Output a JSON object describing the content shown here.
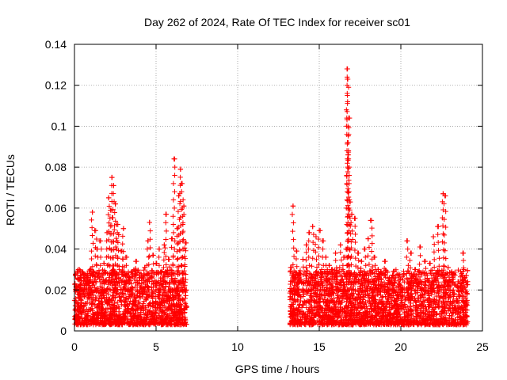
{
  "chart_data": {
    "type": "scatter",
    "title": "Day 262 of 2024, Rate Of TEC Index for receiver sc01",
    "xlabel": "GPS time / hours",
    "ylabel": "ROTI / TECUs",
    "xlim": [
      0,
      25
    ],
    "ylim": [
      0,
      0.14
    ],
    "xticks": [
      0,
      5,
      10,
      15,
      20,
      25
    ],
    "yticks": [
      0,
      0.02,
      0.04,
      0.06,
      0.08,
      0.1,
      0.12,
      0.14
    ],
    "xtick_labels": [
      "0",
      "5",
      "10",
      "15",
      "20",
      "25"
    ],
    "ytick_labels": [
      "0",
      "0.02",
      "0.04",
      "0.06",
      "0.08",
      "0.1",
      "0.12",
      "0.14"
    ],
    "grid": true,
    "marker": "+",
    "color": "#ff0000",
    "series": [
      {
        "name": "sc01",
        "points": [
          [
            0.1,
            0.022
          ],
          [
            0.2,
            0.018
          ],
          [
            0.3,
            0.025
          ],
          [
            0.4,
            0.015
          ],
          [
            0.6,
            0.021
          ],
          [
            0.8,
            0.027
          ],
          [
            1.0,
            0.03
          ],
          [
            1.1,
            0.058
          ],
          [
            1.3,
            0.049
          ],
          [
            1.4,
            0.04
          ],
          [
            1.6,
            0.044
          ],
          [
            1.8,
            0.033
          ],
          [
            2.0,
            0.048
          ],
          [
            2.1,
            0.065
          ],
          [
            2.2,
            0.059
          ],
          [
            2.3,
            0.075
          ],
          [
            2.4,
            0.071
          ],
          [
            2.5,
            0.062
          ],
          [
            2.6,
            0.052
          ],
          [
            2.7,
            0.047
          ],
          [
            2.9,
            0.039
          ],
          [
            3.0,
            0.05
          ],
          [
            3.2,
            0.036
          ],
          [
            3.5,
            0.029
          ],
          [
            3.8,
            0.034
          ],
          [
            4.0,
            0.026
          ],
          [
            4.3,
            0.031
          ],
          [
            4.5,
            0.044
          ],
          [
            4.6,
            0.053
          ],
          [
            4.8,
            0.037
          ],
          [
            5.0,
            0.033
          ],
          [
            5.2,
            0.04
          ],
          [
            5.5,
            0.042
          ],
          [
            5.6,
            0.057
          ],
          [
            5.8,
            0.035
          ],
          [
            6.0,
            0.045
          ],
          [
            6.1,
            0.084
          ],
          [
            6.3,
            0.05
          ],
          [
            6.4,
            0.066
          ],
          [
            6.5,
            0.079
          ],
          [
            6.6,
            0.072
          ],
          [
            6.7,
            0.061
          ],
          [
            6.8,
            0.043
          ],
          [
            13.3,
            0.031
          ],
          [
            13.4,
            0.061
          ],
          [
            13.6,
            0.039
          ],
          [
            13.8,
            0.028
          ],
          [
            14.0,
            0.035
          ],
          [
            14.2,
            0.042
          ],
          [
            14.4,
            0.048
          ],
          [
            14.6,
            0.051
          ],
          [
            14.8,
            0.046
          ],
          [
            15.0,
            0.049
          ],
          [
            15.2,
            0.044
          ],
          [
            15.4,
            0.036
          ],
          [
            15.6,
            0.032
          ],
          [
            15.8,
            0.03
          ],
          [
            16.0,
            0.038
          ],
          [
            16.3,
            0.042
          ],
          [
            16.5,
            0.036
          ],
          [
            16.7,
            0.128
          ],
          [
            16.75,
            0.123
          ],
          [
            16.8,
            0.104
          ],
          [
            16.78,
            0.086
          ],
          [
            16.9,
            0.063
          ],
          [
            17.0,
            0.057
          ],
          [
            17.2,
            0.055
          ],
          [
            17.4,
            0.038
          ],
          [
            17.6,
            0.034
          ],
          [
            17.8,
            0.04
          ],
          [
            18.0,
            0.045
          ],
          [
            18.2,
            0.054
          ],
          [
            18.4,
            0.036
          ],
          [
            18.6,
            0.03
          ],
          [
            18.8,
            0.028
          ],
          [
            19.0,
            0.034
          ],
          [
            19.3,
            0.026
          ],
          [
            19.5,
            0.022
          ],
          [
            19.8,
            0.018
          ],
          [
            20.1,
            0.02
          ],
          [
            20.4,
            0.044
          ],
          [
            20.6,
            0.038
          ],
          [
            20.9,
            0.03
          ],
          [
            21.2,
            0.041
          ],
          [
            21.5,
            0.034
          ],
          [
            21.8,
            0.033
          ],
          [
            22.0,
            0.046
          ],
          [
            22.3,
            0.051
          ],
          [
            22.6,
            0.067
          ],
          [
            22.7,
            0.066
          ],
          [
            22.9,
            0.031
          ],
          [
            23.2,
            0.028
          ],
          [
            23.5,
            0.024
          ],
          [
            23.8,
            0.038
          ],
          [
            24.0,
            0.027
          ]
        ]
      }
    ],
    "dense_bands": [
      {
        "x_range": [
          0.0,
          6.9
        ],
        "y_range": [
          0.003,
          0.03
        ]
      },
      {
        "x_range": [
          13.2,
          24.1
        ],
        "y_range": [
          0.003,
          0.03
        ]
      }
    ]
  }
}
